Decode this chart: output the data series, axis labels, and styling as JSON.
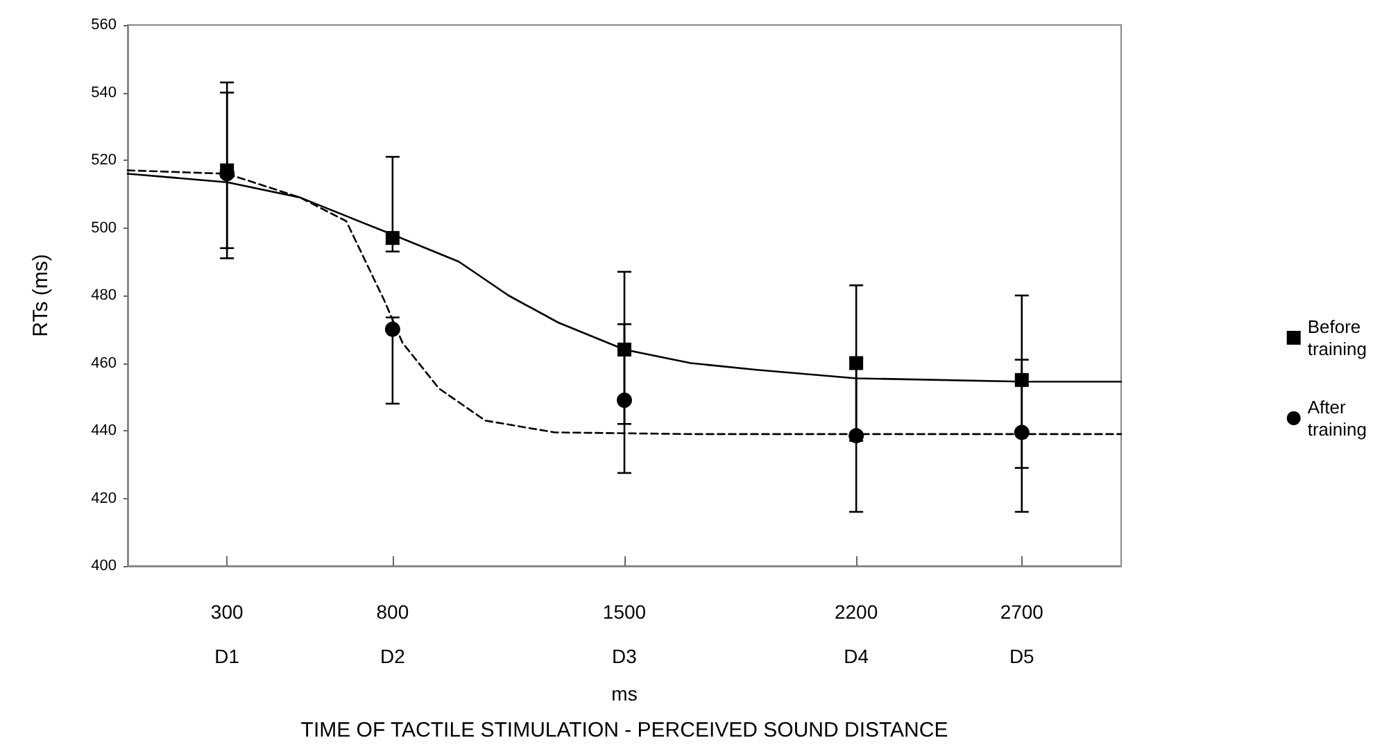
{
  "chart_data": {
    "type": "scatter",
    "title": "TIME OF TACTILE STIMULATION - PERCEIVED SOUND DISTANCE",
    "xlabel": "ms",
    "ylabel": "RTs (ms)",
    "xlim": [
      0,
      3000
    ],
    "xticks": [
      300,
      800,
      1500,
      2200,
      2700
    ],
    "annotations": [
      "D1",
      "D2",
      "D3",
      "D4",
      "D5"
    ],
    "ylim": [
      400,
      560
    ],
    "yticks": [
      400,
      420,
      440,
      460,
      480,
      500,
      520,
      540,
      560
    ],
    "grid": false,
    "legend": "right",
    "series": [
      {
        "name": "Before training",
        "marker": "square",
        "line_style": "solid",
        "color": "#000000",
        "x": [
          300,
          800,
          1500,
          2200,
          2700
        ],
        "values": [
          517,
          497,
          464,
          460,
          455
        ],
        "errors": [
          [
            491,
            543
          ],
          [
            493,
            521
          ],
          [
            442,
            487
          ],
          [
            437,
            483
          ],
          [
            429,
            480
          ]
        ]
      },
      {
        "name": "After training",
        "marker": "circle",
        "line_style": "dashed",
        "color": "#000000",
        "x": [
          300,
          800,
          1500,
          2200,
          2700
        ],
        "values": [
          516,
          470,
          449,
          438.5,
          439.5
        ],
        "errors": [
          [
            494,
            540
          ],
          [
            448,
            473.5
          ],
          [
            427.5,
            471.5
          ],
          [
            416,
            461
          ],
          [
            416,
            461
          ]
        ]
      },
      {
        "type": "line",
        "marker": "none",
        "line_style": "solid",
        "color": "#000000",
        "x": [
          0,
          300,
          520,
          800,
          1000,
          1150,
          1300,
          1500,
          1700,
          1900,
          2200,
          2700,
          3000
        ],
        "values": [
          516,
          513.5,
          509,
          498,
          490,
          480,
          472,
          464,
          460,
          458,
          455.5,
          454.5,
          454.5
        ]
      },
      {
        "type": "line",
        "marker": "none",
        "line_style": "dashed",
        "color": "#000000",
        "x": [
          0,
          300,
          520,
          660,
          775,
          830,
          940,
          1080,
          1290,
          1700,
          3000
        ],
        "values": [
          517,
          516,
          509,
          502,
          478.5,
          466,
          452.5,
          443,
          439.5,
          439,
          439
        ]
      }
    ]
  }
}
